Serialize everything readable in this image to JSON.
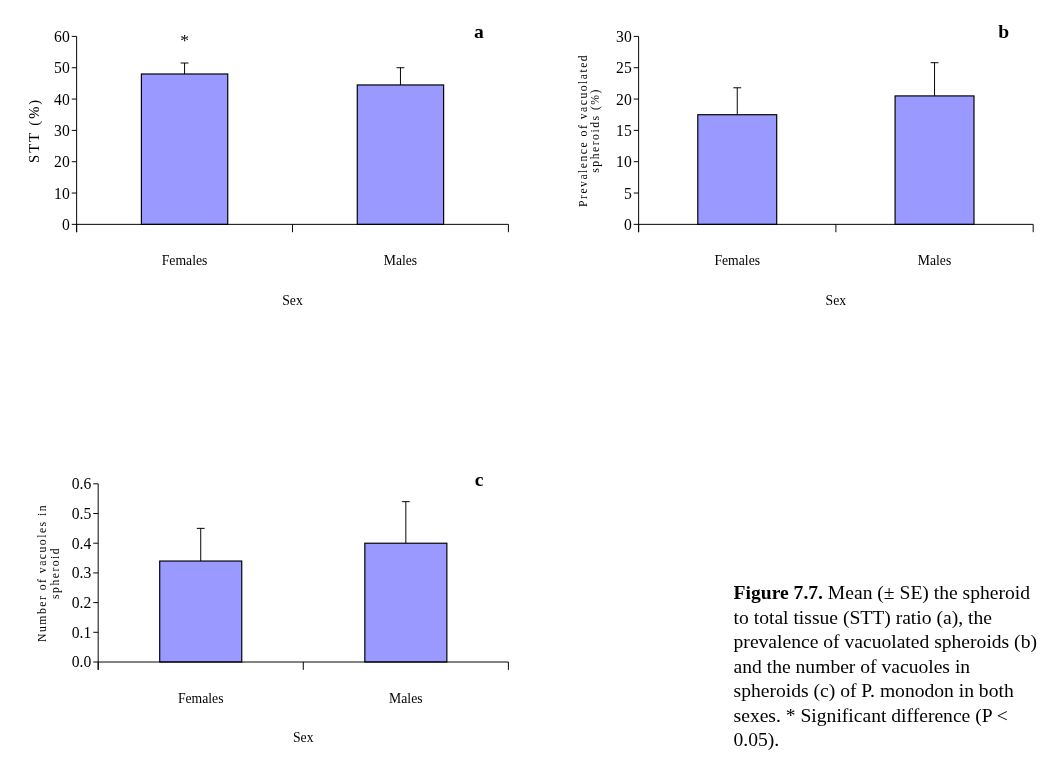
{
  "chart_data": [
    {
      "type": "bar",
      "title": "a",
      "categories": [
        "Females",
        "Males"
      ],
      "values": [
        48,
        44.5
      ],
      "color": "#9999ff",
      "errors": [
        [
          48,
          51.5
        ],
        [
          44.5,
          50
        ]
      ],
      "xlabel": "Sex",
      "ylabel": "STT (%)",
      "ylim": [
        0,
        60
      ],
      "yticks": [
        0,
        10,
        20,
        30,
        40,
        50,
        60
      ],
      "annotations": [
        "*"
      ]
    },
    {
      "type": "bar",
      "title": "b",
      "categories": [
        "Females",
        "Males"
      ],
      "values": [
        17.5,
        20.5
      ],
      "color": "#9999ff",
      "errors": [
        [
          17.5,
          21.8
        ],
        [
          20.5,
          25.8
        ]
      ],
      "xlabel": "Sex",
      "ylabel": "Prevalence of vacuolated\nspheroids (%)",
      "ylim": [
        0,
        30
      ],
      "yticks": [
        0,
        5,
        10,
        15,
        20,
        25,
        30
      ]
    },
    {
      "type": "bar",
      "title": "c",
      "categories": [
        "Females",
        "Males"
      ],
      "values": [
        0.34,
        0.4
      ],
      "color": "#9999ff",
      "errors": [
        [
          0.34,
          0.45
        ],
        [
          0.4,
          0.54
        ]
      ],
      "xlabel": "Sex",
      "ylabel": "Number of vacuoles in\nspheroid",
      "ylim": [
        0,
        0.6
      ],
      "yticks": [
        {
          "value": 0,
          "label": "0.0"
        },
        0.1,
        0.2,
        0.3,
        0.4,
        0.5,
        0.6
      ]
    },
    {
      "type": "other",
      "title": "Figure 7.7.",
      "annotations": [
        "Mean (± SE) the spheroid to total tissue (STT) ratio (a), the prevalence of vacuolated spheroids (b) and the number of vacuoles in spheroids (c) of P. monodon in both sexes. * Significant difference (P < 0.05)."
      ]
    }
  ]
}
